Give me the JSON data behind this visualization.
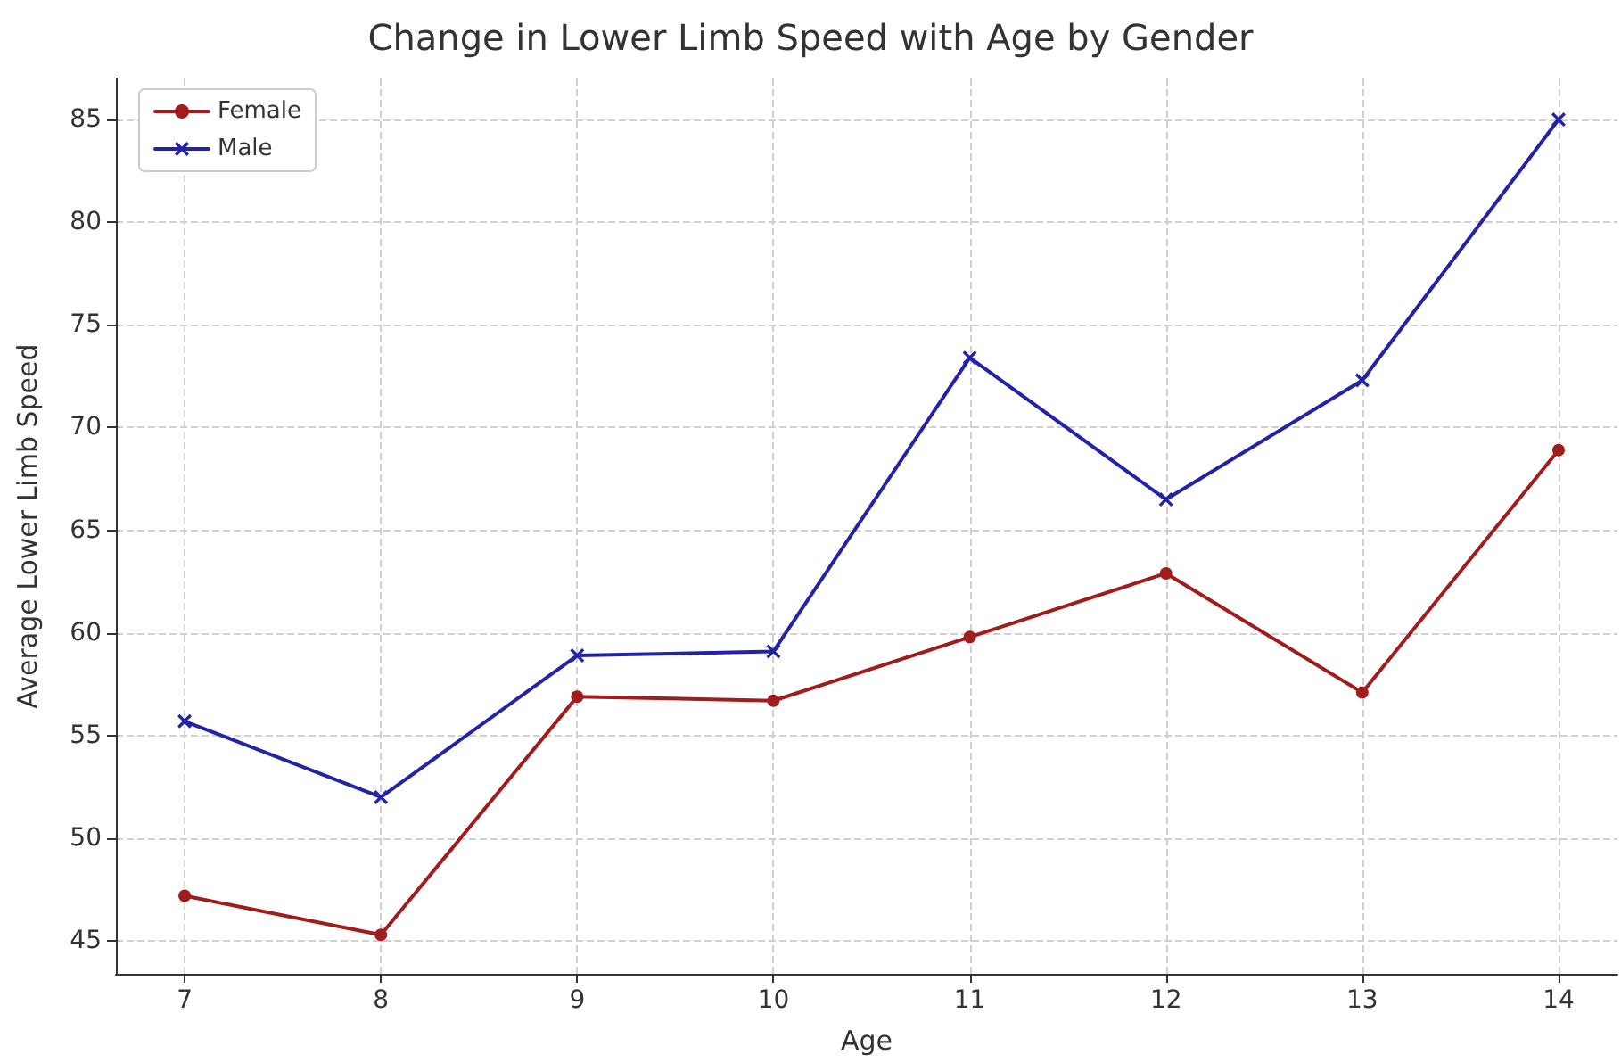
{
  "chart_data": {
    "type": "line",
    "title": "Change in Lower Limb Speed with Age by Gender",
    "xlabel": "Age",
    "ylabel": "Average Lower Limb Speed",
    "x": [
      7,
      8,
      9,
      10,
      11,
      12,
      13,
      14
    ],
    "series": [
      {
        "name": "Female",
        "color": "#a11d1d",
        "marker": "circle",
        "values": [
          47.2,
          45.3,
          56.9,
          56.7,
          59.8,
          62.9,
          57.1,
          68.9
        ]
      },
      {
        "name": "Male",
        "color": "#2323a8",
        "marker": "cross",
        "values": [
          55.7,
          52.0,
          58.9,
          59.1,
          73.4,
          66.5,
          72.3,
          85.0
        ]
      }
    ],
    "xlim": [
      6.65,
      14.3
    ],
    "xticks": [
      7,
      8,
      9,
      10,
      11,
      12,
      13,
      14
    ],
    "ylim": [
      43.4,
      87
    ],
    "yticks": [
      45,
      50,
      55,
      60,
      65,
      70,
      75,
      80,
      85
    ],
    "grid": true,
    "legend": "top left",
    "line_style": "solid"
  }
}
